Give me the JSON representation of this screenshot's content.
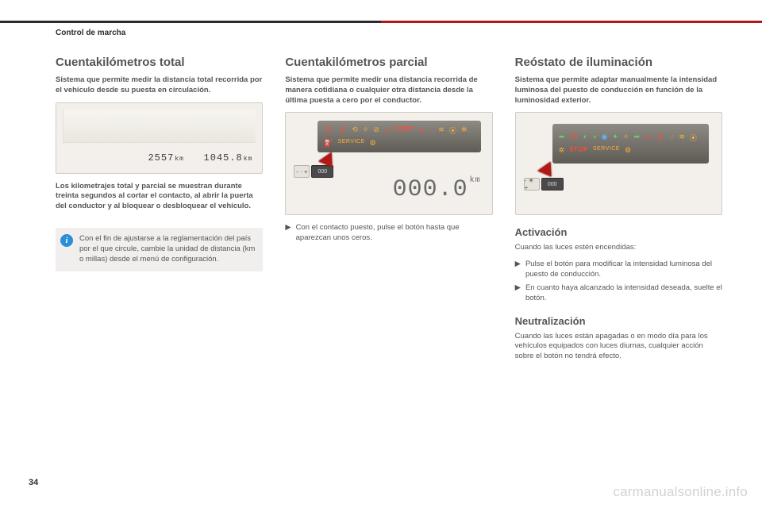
{
  "colors": {
    "accent_red": "#b01915",
    "header_dark": "#2b2b2b",
    "text_body": "#555555",
    "info_bg": "#f0efed",
    "info_badge": "#2a8fd4",
    "figure_bg": "#f3f0eb",
    "icon_red": "#ff4a3a",
    "icon_amber": "#ffae3a",
    "icon_green": "#5fd46a",
    "icon_blue": "#5fb3ff"
  },
  "header": {
    "section_label": "Control de marcha"
  },
  "page_number": "34",
  "watermark": "carmanualsonline.info",
  "col1": {
    "title": "Cuentakilómetros total",
    "intro": "Sistema que permite medir la distancia total recorrida por el vehículo desde su puesta en circulación.",
    "figure": {
      "type": "odometer-display",
      "readouts": [
        {
          "value": "2557",
          "unit": "km"
        },
        {
          "value": "1045.8",
          "unit": "km"
        }
      ],
      "background_color": "#f3f0eb"
    },
    "after_fig": "Los kilometrajes total y parcial se muestran durante treinta segundos al cortar el contacto, al abrir la puerta del conductor y al bloquear o desbloquear el vehículo.",
    "info_box": "Con el fin de ajustarse a la reglamentación del país por el que circule, cambie la unidad de distancia (km o millas) desde el menú de configuración."
  },
  "col2": {
    "title": "Cuentakilómetros parcial",
    "intro": "Sistema que permite medir una distancia recorrida de manera cotidiana o cualquier otra distancia desde la última puesta a cero por el conductor.",
    "figure": {
      "type": "trip-reset-display",
      "warning_icons_row1": [
        "seatbelt",
        "temp",
        "esp",
        "abs",
        "brake",
        "warn"
      ],
      "warning_icons_row2": [
        "battery",
        "oil",
        "coolant",
        "washer",
        "airbag",
        "fuel",
        "engine"
      ],
      "stop_label": "STOP",
      "service_label": "SERVICE",
      "button_left_label": "- · +",
      "button_right_label": "000",
      "trip_value": "000.0",
      "trip_unit": "km",
      "arrow_color": "#b01915",
      "background_color": "#f3f0eb"
    },
    "bullet": "Con el contacto puesto, pulse el botón hasta que aparezcan unos ceros."
  },
  "col3": {
    "title": "Reóstato de iluminación",
    "intro": "Sistema que permite adaptar manualmente la intensidad luminosa del puesto de conducción en función de la luminosidad exterior.",
    "figure": {
      "type": "rheostat-display",
      "warning_icons_row1": [
        "left",
        "seatbelt",
        "lowbeam",
        "sidelight",
        "highbeam",
        "foglight-f",
        "foglight-r",
        "right"
      ],
      "warning_icons_row2": [
        "battery",
        "temp",
        "oil",
        "coolant",
        "washer",
        "airbag"
      ],
      "stop_label": "STOP",
      "service_label": "SERVICE",
      "engine_icon": "engine",
      "button_left_label": "- ☀ +",
      "button_right_label": "000",
      "arrow_color": "#b01915",
      "background_color": "#f3f0eb"
    },
    "activation": {
      "title": "Activación",
      "lead": "Cuando las luces estén encendidas:",
      "bullets": [
        "Pulse el botón para modificar la intensidad luminosa del puesto de conducción.",
        "En cuanto haya alcanzado la intensidad deseada, suelte el botón."
      ]
    },
    "neutral": {
      "title": "Neutralización",
      "text": "Cuando las luces están apagadas o en modo día para los vehículos equipados con luces diurnas, cualquier acción sobre el botón no tendrá efecto."
    }
  }
}
